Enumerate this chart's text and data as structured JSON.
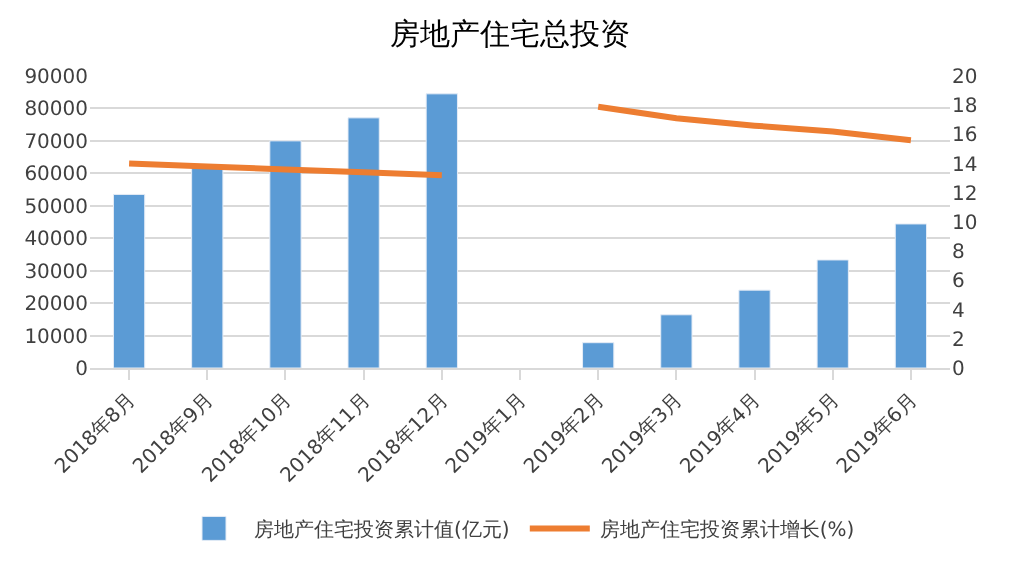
{
  "chart_data": {
    "type": "bar",
    "title": "房地产住宅总投资",
    "categories": [
      "2018年8月",
      "2018年9月",
      "2018年10月",
      "2018年11月",
      "2018年12月",
      "2019年1月",
      "2019年2月",
      "2019年3月",
      "2019年4月",
      "2019年5月",
      "2019年6月"
    ],
    "series": [
      {
        "name": "房地产住宅投资累计值(亿元)",
        "color": "#5b9bd5",
        "values": [
          53500,
          62200,
          70000,
          77100,
          84500,
          null,
          7800,
          16400,
          24000,
          33300,
          44400
        ]
      },
      {
        "name": "房地产住宅投资累计增长(%)",
        "type": "line",
        "axis": "y2",
        "color": "#ed7d31",
        "values": [
          14.0,
          13.8,
          13.6,
          13.4,
          13.2,
          null,
          17.9,
          17.1,
          16.6,
          16.2,
          15.6
        ]
      }
    ],
    "ylim": [
      0,
      90000
    ],
    "yticks": [
      0,
      10000,
      20000,
      30000,
      40000,
      50000,
      60000,
      70000,
      80000,
      90000
    ],
    "y2lim": [
      0,
      20
    ],
    "y2ticks": [
      0,
      2,
      4,
      6,
      8,
      10,
      12,
      14,
      16,
      18,
      20
    ],
    "grid": "y",
    "legend": "bottom",
    "marker": "none",
    "line_style": "solid"
  }
}
